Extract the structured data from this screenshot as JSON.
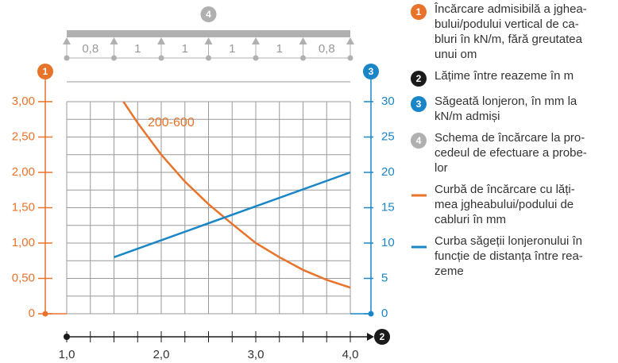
{
  "chart_data": {
    "type": "line",
    "xlim": [
      1.0,
      4.0
    ],
    "xticks": [
      {
        "value": 1.0,
        "label": "1,0"
      },
      {
        "value": 2.0,
        "label": "2,0"
      },
      {
        "value": 3.0,
        "label": "3,0"
      },
      {
        "value": 4.0,
        "label": "4,0"
      }
    ],
    "xminorticks": [
      1.25,
      1.5,
      1.75,
      2.25,
      2.5,
      2.75,
      3.25,
      3.5,
      3.75
    ],
    "ylim": [
      0,
      3.0
    ],
    "yticks": [
      0,
      {
        "value": 0.5,
        "label": "0,50"
      },
      {
        "value": 1.0,
        "label": "1,00"
      },
      {
        "value": 1.5,
        "label": "1,50"
      },
      {
        "value": 2.0,
        "label": "2,00"
      },
      {
        "value": 2.5,
        "label": "2,50"
      },
      {
        "value": 3.0,
        "label": "3,00"
      }
    ],
    "yminorticks": [
      0.25,
      0.75,
      1.25,
      1.75,
      2.25,
      2.75
    ],
    "y2lim": [
      0,
      30
    ],
    "y2ticks": [
      0,
      5,
      10,
      15,
      20,
      25,
      30
    ],
    "grid": true,
    "axis_markers": {
      "y": "1",
      "y2": "3",
      "x": "2"
    },
    "series": [
      {
        "name": "200-600",
        "color": "#e8732a",
        "x": [
          1.6,
          1.75,
          2.0,
          2.25,
          2.5,
          2.75,
          3.0,
          3.25,
          3.5,
          3.75,
          4.0
        ],
        "values": [
          3.0,
          2.7,
          2.25,
          1.87,
          1.55,
          1.27,
          1.0,
          0.8,
          0.62,
          0.48,
          0.37
        ]
      },
      {
        "color": "#1a86c8",
        "axis": "y2",
        "x": [
          1.5,
          4.0
        ],
        "values": [
          8,
          20
        ]
      }
    ],
    "load_scheme": {
      "marker": "4",
      "spans": [
        "0,8",
        "1",
        "1",
        "1",
        "1",
        "0,8"
      ]
    },
    "legend": {
      "items": [
        {
          "marker": "1",
          "color": "#e8732a",
          "lines": [
            "Încărcare admisibilă a jghea-",
            "bului/podului vertical de ca-",
            "bluri în kN/m, fără greutatea",
            "unui om"
          ]
        },
        {
          "marker": "2",
          "color": "#1a1a1a",
          "lines": [
            "Lățime între reazeme în m"
          ]
        },
        {
          "marker": "3",
          "color": "#1a86c8",
          "lines": [
            "Săgeată lonjeron, în mm la",
            "kN/m admiși"
          ]
        },
        {
          "marker": "4",
          "color": "#b0b0b0",
          "lines": [
            "Schema de încărcare la pro-",
            "cedeul de efectuare a probe-",
            "lor"
          ]
        },
        {
          "line": "#e8732a",
          "lines": [
            "Curbă de încărcare cu lăți-",
            "mea jgheabului/podului de",
            "cabluri în mm"
          ]
        },
        {
          "line": "#1a86c8",
          "lines": [
            "Curba săgeții lonjeronului în",
            "funcție de distanța între rea-",
            "zeme"
          ]
        }
      ]
    }
  }
}
